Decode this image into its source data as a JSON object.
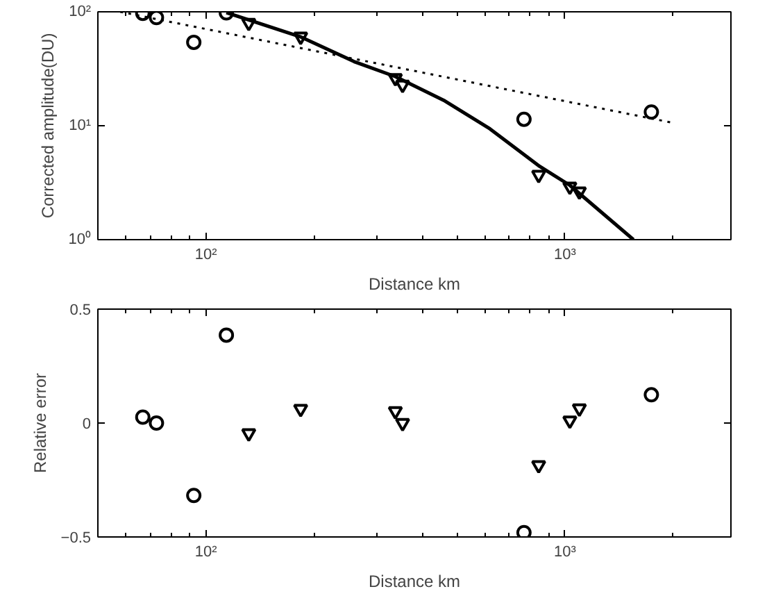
{
  "chart_data": [
    {
      "type": "scatter",
      "xlabel": "Distance km",
      "ylabel": "Corrected amplitude(DU)",
      "log": "xy",
      "grid": false,
      "xlim": [
        50,
        2900
      ],
      "ylim": [
        1,
        100
      ],
      "xticks": [
        {
          "value": 60,
          "label": null
        },
        {
          "value": 70,
          "label": null
        },
        {
          "value": 80,
          "label": null
        },
        {
          "value": 90,
          "label": null
        },
        {
          "value": 100,
          "label": "10²"
        },
        {
          "value": 200,
          "label": null
        },
        {
          "value": 300,
          "label": null
        },
        {
          "value": 400,
          "label": null
        },
        {
          "value": 500,
          "label": null
        },
        {
          "value": 600,
          "label": null
        },
        {
          "value": 700,
          "label": null
        },
        {
          "value": 800,
          "label": null
        },
        {
          "value": 900,
          "label": null
        },
        {
          "value": 1000,
          "label": "10³"
        },
        {
          "value": 2000,
          "label": null
        }
      ],
      "yticks": [
        {
          "value": 1,
          "label": "10⁰"
        },
        {
          "value": 10,
          "label": "10¹"
        },
        {
          "value": 100,
          "label": "10²"
        }
      ],
      "series": [
        {
          "marker": "circle",
          "color": "#000000",
          "x": [
            66.7,
            72.8,
            92.5,
            114,
            769,
            1741
          ],
          "values": [
            97,
            89,
            54,
            98,
            11.4,
            13.2
          ]
        },
        {
          "marker": "triangle",
          "color": "#000000",
          "x": [
            131.6,
            183.6,
            337,
            353,
            845,
            1032,
            1097
          ],
          "values": [
            80,
            60.5,
            26.2,
            22.9,
            3.7,
            2.92,
            2.65
          ]
        },
        {
          "type": "line",
          "line_style": "solid",
          "color": "#000000",
          "x": [
            114,
            183,
            260,
            337,
            463,
            618,
            850,
            1032,
            1552
          ],
          "values": [
            98.5,
            60.5,
            36.3,
            27,
            16.5,
            9.4,
            4.4,
            3.0,
            1.0
          ]
        },
        {
          "type": "line",
          "line_style": "dotted",
          "color": "#000000",
          "x": [
            57.7,
            2000
          ],
          "values": [
            100,
            10.6
          ]
        }
      ]
    },
    {
      "type": "scatter",
      "xlabel": "Distance km",
      "ylabel": "Relative error",
      "log": "x",
      "grid": false,
      "xlim": [
        50,
        2900
      ],
      "ylim": [
        -0.5,
        0.5
      ],
      "xticks": [
        {
          "value": 60,
          "label": null
        },
        {
          "value": 70,
          "label": null
        },
        {
          "value": 80,
          "label": null
        },
        {
          "value": 90,
          "label": null
        },
        {
          "value": 100,
          "label": "10²"
        },
        {
          "value": 200,
          "label": null
        },
        {
          "value": 300,
          "label": null
        },
        {
          "value": 400,
          "label": null
        },
        {
          "value": 500,
          "label": null
        },
        {
          "value": 600,
          "label": null
        },
        {
          "value": 700,
          "label": null
        },
        {
          "value": 800,
          "label": null
        },
        {
          "value": 900,
          "label": null
        },
        {
          "value": 1000,
          "label": "10³"
        },
        {
          "value": 2000,
          "label": null
        }
      ],
      "yticks": [
        {
          "value": -0.5,
          "label": "−0.5"
        },
        0,
        0.5
      ],
      "series": [
        {
          "marker": "circle",
          "color": "#000000",
          "x": [
            66.7,
            72.8,
            92.5,
            114,
            769,
            1741
          ],
          "values": [
            0.026,
            0.0,
            -0.318,
            0.386,
            -0.481,
            0.124
          ]
        },
        {
          "marker": "triangle",
          "color": "#000000",
          "x": [
            131.6,
            183.6,
            337,
            353,
            845,
            1032,
            1097
          ],
          "values": [
            -0.045,
            0.062,
            0.052,
            0.0,
            -0.185,
            0.011,
            0.064
          ]
        }
      ]
    }
  ]
}
